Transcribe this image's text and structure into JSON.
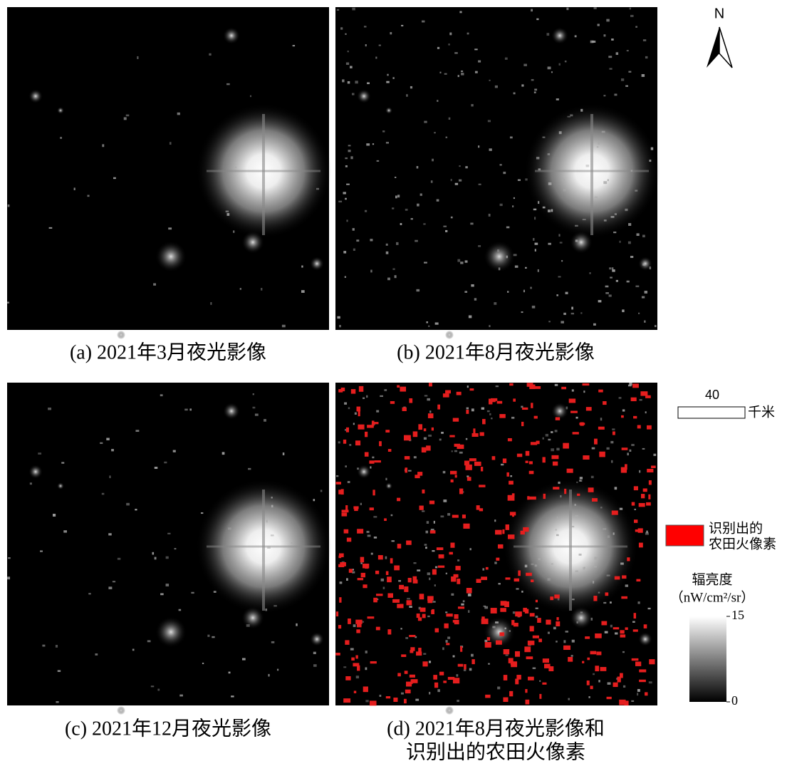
{
  "panels": [
    {
      "caption": "(a) 2021年3月夜光影像"
    },
    {
      "caption": "(b) 2021年8月夜光影像"
    },
    {
      "caption": "(c) 2021年12月夜光影像"
    },
    {
      "caption": [
        "(d) 2021年8月夜光影像和",
        "识别出的农田火像素"
      ]
    }
  ],
  "north_arrow": {
    "label": "N"
  },
  "scale_bar": {
    "value": 40,
    "unit": "千米"
  },
  "legend": {
    "label": [
      "识别出的",
      "农田火像素"
    ],
    "color": "#ff0000"
  },
  "colorbar": {
    "title": "辐亮度",
    "unit": "（nW/cm²/sr）",
    "range": [
      0,
      15
    ],
    "ticks": [
      15,
      0
    ]
  }
}
